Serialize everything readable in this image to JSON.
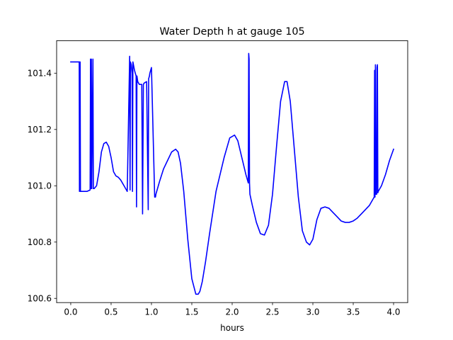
{
  "chart_data": {
    "type": "line",
    "title": "Water Depth h at gauge 105",
    "xlabel": "hours",
    "ylabel": "",
    "xlim": [
      -0.175,
      4.175
    ],
    "ylim": [
      100.585,
      101.515
    ],
    "xticks": [
      0.0,
      0.5,
      1.0,
      1.5,
      2.0,
      2.5,
      3.0,
      3.5,
      4.0
    ],
    "xtick_labels": [
      "0.0",
      "0.5",
      "1.0",
      "1.5",
      "2.0",
      "2.5",
      "3.0",
      "3.5",
      "4.0"
    ],
    "yticks": [
      100.6,
      100.8,
      101.0,
      101.2,
      101.4
    ],
    "ytick_labels": [
      "100.6",
      "100.8",
      "101.0",
      "101.2",
      "101.4"
    ],
    "grid": false,
    "series": [
      {
        "color": "#0000ff",
        "x": [
          0.0,
          0.1,
          0.105,
          0.108,
          0.112,
          0.116,
          0.12,
          0.2,
          0.24,
          0.245,
          0.25,
          0.255,
          0.26,
          0.275,
          0.28,
          0.285,
          0.29,
          0.32,
          0.35,
          0.38,
          0.41,
          0.44,
          0.47,
          0.5,
          0.53,
          0.56,
          0.59,
          0.62,
          0.66,
          0.7,
          0.73,
          0.735,
          0.74,
          0.75,
          0.76,
          0.765,
          0.77,
          0.79,
          0.81,
          0.815,
          0.82,
          0.825,
          0.83,
          0.85,
          0.88,
          0.89,
          0.9,
          0.91,
          0.94,
          0.96,
          0.965,
          0.97,
          0.975,
          0.98,
          1.0,
          1.04,
          1.05,
          1.055,
          1.07,
          1.1,
          1.15,
          1.2,
          1.25,
          1.3,
          1.33,
          1.36,
          1.4,
          1.45,
          1.5,
          1.55,
          1.58,
          1.6,
          1.63,
          1.67,
          1.72,
          1.8,
          1.9,
          1.97,
          2.03,
          2.07,
          2.12,
          2.17,
          2.2,
          2.205,
          2.21,
          2.215,
          2.22,
          2.25,
          2.3,
          2.35,
          2.4,
          2.45,
          2.5,
          2.55,
          2.6,
          2.65,
          2.68,
          2.72,
          2.77,
          2.82,
          2.87,
          2.92,
          2.96,
          3.0,
          3.05,
          3.1,
          3.15,
          3.2,
          3.25,
          3.3,
          3.35,
          3.4,
          3.45,
          3.5,
          3.55,
          3.6,
          3.65,
          3.7,
          3.74,
          3.76,
          3.765,
          3.77,
          3.775,
          3.78,
          3.79,
          3.795,
          3.8,
          3.805,
          3.81,
          3.85,
          3.9,
          3.95,
          4.0
        ],
        "y": [
          101.44,
          101.44,
          101.44,
          100.98,
          101.44,
          101.44,
          100.98,
          100.98,
          100.985,
          101.45,
          100.99,
          101.45,
          100.99,
          101.45,
          100.99,
          100.99,
          100.99,
          101.0,
          101.05,
          101.12,
          101.15,
          101.155,
          101.14,
          101.1,
          101.05,
          101.035,
          101.03,
          101.02,
          101.0,
          100.98,
          101.46,
          100.985,
          101.44,
          101.43,
          101.4,
          100.98,
          101.44,
          101.41,
          101.39,
          100.925,
          101.39,
          101.38,
          101.37,
          101.36,
          101.36,
          100.9,
          101.36,
          101.365,
          101.37,
          100.915,
          101.38,
          101.385,
          101.39,
          101.4,
          101.42,
          100.96,
          100.96,
          100.97,
          100.985,
          101.015,
          101.06,
          101.09,
          101.12,
          101.13,
          101.12,
          101.08,
          100.98,
          100.81,
          100.67,
          100.615,
          100.615,
          100.625,
          100.66,
          100.73,
          100.83,
          100.98,
          101.1,
          101.17,
          101.18,
          101.16,
          101.1,
          101.04,
          101.01,
          101.47,
          101.45,
          101.01,
          100.97,
          100.93,
          100.87,
          100.83,
          100.825,
          100.86,
          100.97,
          101.14,
          101.3,
          101.37,
          101.37,
          101.3,
          101.13,
          100.96,
          100.84,
          100.8,
          100.79,
          100.81,
          100.88,
          100.92,
          100.925,
          100.92,
          100.905,
          100.89,
          100.875,
          100.87,
          100.87,
          100.875,
          100.885,
          100.9,
          100.915,
          100.93,
          100.95,
          100.96,
          101.41,
          100.96,
          101.43,
          100.97,
          100.97,
          101.42,
          101.43,
          100.975,
          100.98,
          101.0,
          101.04,
          101.09,
          101.13
        ]
      }
    ]
  }
}
